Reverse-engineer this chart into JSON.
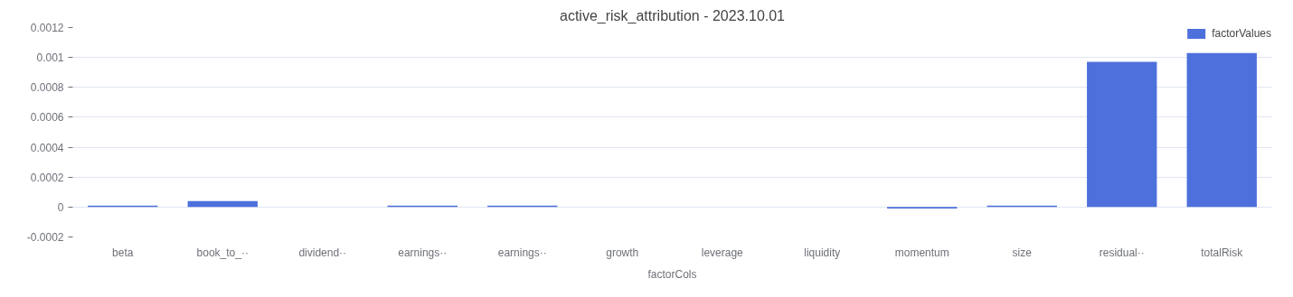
{
  "chart_data": {
    "type": "bar",
    "title": "active_risk_attribution - 2023.10.01",
    "xlabel": "factorCols",
    "categories": [
      "beta",
      "book_to_··",
      "dividend··",
      "earnings··",
      "earnings··",
      "growth",
      "leverage",
      "liquidity",
      "momentum",
      "size",
      "residual··",
      "totalRisk"
    ],
    "series": [
      {
        "name": "factorValues",
        "color": "#4e70dc",
        "values": [
          1e-05,
          4e-05,
          0,
          1e-05,
          1e-05,
          0,
          0,
          0,
          -1e-05,
          1e-05,
          0.00097,
          0.00103
        ]
      }
    ],
    "ylim": [
      -0.0002,
      0.0012
    ],
    "yticks": [
      -0.0002,
      0,
      0.0002,
      0.0004,
      0.0006,
      0.0008,
      0.001,
      0.0012
    ],
    "grid": "y",
    "legend": "top right"
  }
}
